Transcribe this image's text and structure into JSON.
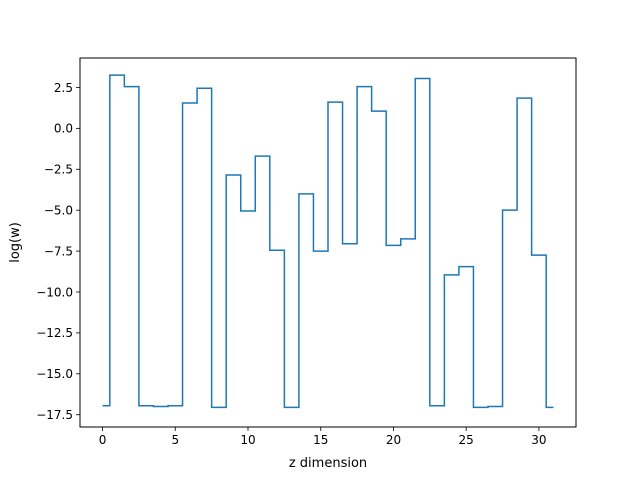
{
  "chart_data": {
    "type": "line",
    "drawstyle": "steps-mid",
    "xlabel": "z dimension",
    "ylabel": "log(w)",
    "xlim": [
      -1.55,
      32.55
    ],
    "ylim": [
      -18.25,
      4.3
    ],
    "x": [
      0,
      1,
      2,
      3,
      4,
      5,
      6,
      7,
      8,
      9,
      10,
      11,
      12,
      13,
      14,
      15,
      16,
      17,
      18,
      19,
      20,
      21,
      22,
      23,
      24,
      25,
      26,
      27,
      28,
      29,
      30,
      31
    ],
    "series": [
      {
        "name": "",
        "values": [
          -16.95,
          3.25,
          2.55,
          -16.95,
          -17.0,
          -16.95,
          1.55,
          2.45,
          -17.05,
          -2.85,
          -5.05,
          -1.7,
          -7.45,
          -17.05,
          -4.0,
          -7.5,
          1.6,
          -7.05,
          2.55,
          1.05,
          -7.15,
          -6.75,
          3.05,
          -16.95,
          -8.95,
          -8.45,
          -17.05,
          -17.0,
          -5.0,
          1.85,
          -7.75,
          -17.05
        ]
      }
    ],
    "xticks": [
      0,
      5,
      10,
      15,
      20,
      25,
      30
    ],
    "yticks": [
      2.5,
      0.0,
      -2.5,
      -5.0,
      -7.5,
      -10.0,
      -12.5,
      -15.0,
      -17.5
    ],
    "xticklabels": [
      "0",
      "5",
      "10",
      "15",
      "20",
      "25",
      "30"
    ],
    "yticklabels": [
      "2.5",
      "0.0",
      "−2.5",
      "−5.0",
      "−7.5",
      "−10.0",
      "−12.5",
      "−15.0",
      "−17.5"
    ],
    "color": "#1f77b4",
    "grid": false,
    "legend": false
  }
}
